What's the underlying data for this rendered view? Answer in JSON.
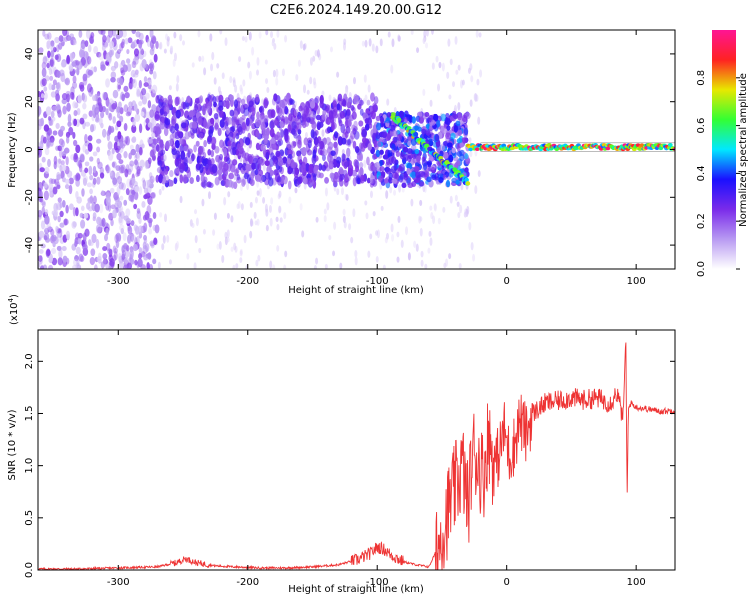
{
  "title": "C2E6.2024.149.20.00.G12",
  "chart_data": [
    {
      "type": "heatmap",
      "xlabel": "Height of straight line (km)",
      "ylabel": "Frequency (Hz)",
      "xlim": [
        -362,
        130
      ],
      "ylim": [
        -50,
        50
      ],
      "x_ticks": [
        "-300",
        "-200",
        "-100",
        "0",
        "100"
      ],
      "x_tick_values": [
        -300,
        -200,
        -100,
        0,
        100
      ],
      "y_ticks": [
        "-40",
        "-20",
        "0",
        "20",
        "40"
      ],
      "y_tick_values": [
        -40,
        -20,
        0,
        20,
        40
      ],
      "colorbar": {
        "label": "Normalized spectral amplitude",
        "range": [
          0,
          1
        ],
        "ticks": [
          "0.0",
          "0.2",
          "0.4",
          "0.6",
          "0.8"
        ],
        "tick_values": [
          0.0,
          0.2,
          0.4,
          0.6,
          0.8
        ],
        "colormap": "rainbow",
        "colors": [
          "#ffffff",
          "#b89af2",
          "#7a2bea",
          "#1a10ff",
          "#00e8ff",
          "#33ff33",
          "#e8e800",
          "#ff2222",
          "#ff1493"
        ]
      },
      "features": [
        {
          "x_range": [
            -362,
            -270
          ],
          "freq_range": [
            -50,
            50
          ],
          "level": 0.05
        },
        {
          "x_range": [
            -270,
            -100
          ],
          "freq_range": [
            -15,
            22
          ],
          "level": 0.15
        },
        {
          "x_range": [
            -100,
            -30
          ],
          "freq_range": [
            -15,
            15
          ],
          "level": 0.35
        },
        {
          "x_range": [
            -30,
            130
          ],
          "freq_center": 1,
          "freq_width": 2,
          "level": 0.8
        }
      ]
    },
    {
      "type": "line",
      "xlabel": "Height of straight line (km)",
      "ylabel": "SNR (10 * v/v)",
      "y_exponent_label": "(x10",
      "y_exponent_power": "4",
      "y_exponent_close": ")",
      "xlim": [
        -362,
        130
      ],
      "ylim": [
        0,
        2.3
      ],
      "x_ticks": [
        "-300",
        "-200",
        "-100",
        "0",
        "100"
      ],
      "x_tick_values": [
        -300,
        -200,
        -100,
        0,
        100
      ],
      "y_ticks": [
        "0.0",
        "0.5",
        "1.0",
        "1.5",
        "2.0"
      ],
      "y_tick_values": [
        0.0,
        0.5,
        1.0,
        1.5,
        2.0
      ],
      "series_color": "#ee3333",
      "series": [
        {
          "x": [
            -362,
            -330,
            -300,
            -270,
            -255,
            -248,
            -240,
            -225,
            -210,
            -190,
            -170,
            -150,
            -130,
            -115,
            -105,
            -100,
            -95,
            -90,
            -80,
            -70,
            -60,
            -52,
            -47,
            -42,
            -38,
            -34,
            -30,
            -26,
            -22,
            -18,
            -14,
            -10,
            -6,
            -2,
            2,
            6,
            10,
            15,
            20,
            25,
            30,
            40,
            50,
            60,
            70,
            80,
            85,
            90,
            92,
            93,
            94,
            96,
            100,
            110,
            120,
            130
          ],
          "y": [
            0.01,
            0.01,
            0.02,
            0.03,
            0.07,
            0.11,
            0.07,
            0.04,
            0.03,
            0.02,
            0.02,
            0.03,
            0.05,
            0.1,
            0.16,
            0.22,
            0.2,
            0.15,
            0.08,
            0.05,
            0.03,
            0.25,
            0.5,
            0.7,
            0.85,
            1.0,
            0.6,
            1.15,
            1.05,
            0.9,
            1.3,
            1.0,
            1.1,
            1.35,
            1.1,
            1.2,
            1.45,
            1.3,
            1.5,
            1.55,
            1.6,
            1.62,
            1.65,
            1.63,
            1.65,
            1.6,
            1.7,
            1.45,
            2.25,
            0.65,
            1.55,
            1.6,
            1.56,
            1.54,
            1.52,
            1.53
          ]
        }
      ]
    }
  ]
}
